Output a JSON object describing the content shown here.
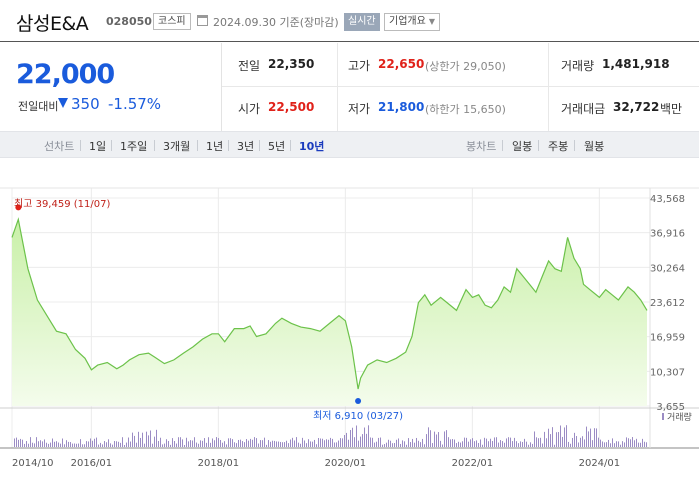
{
  "header": {
    "name": "삼성E&A",
    "code": "028050",
    "market": "코스피",
    "date": "2024.09.30  기준(장마감)",
    "realtime_label": "실시간",
    "overview_label": "기업개요"
  },
  "price": {
    "current": "22,000",
    "diff_label": "전일대비",
    "diff_value": "350",
    "diff_percent": "-1.57%"
  },
  "summary": {
    "prev_close": {
      "label": "전일",
      "value": "22,350"
    },
    "high": {
      "label": "고가",
      "value": "22,650",
      "sub": "(상한가 29,050)"
    },
    "volume": {
      "label": "거래량",
      "value": "1,481,918"
    },
    "open": {
      "label": "시가",
      "value": "22,500"
    },
    "low": {
      "label": "저가",
      "value": "21,800",
      "sub": "(하한가 15,650)"
    },
    "trade_value": {
      "label": "거래대금",
      "value": "32,722",
      "unit": "백만"
    }
  },
  "line_chart_tabs": {
    "label": "선차트",
    "items": [
      "1일",
      "1주일",
      "3개월",
      "1년",
      "3년",
      "5년",
      "10년"
    ],
    "active_index": 6
  },
  "candle_chart_tabs": {
    "label": "봉차트",
    "items": [
      "일봉",
      "주봉",
      "월봉"
    ]
  },
  "chart_data": {
    "type": "area",
    "title": "",
    "x_ticks": [
      "2014/10",
      "2016/01",
      "2018/01",
      "2020/01",
      "2022/01",
      "2024/01"
    ],
    "y_ticks": [
      43568,
      36916,
      30264,
      23612,
      16959,
      10307,
      3655
    ],
    "ylim": [
      3655,
      43568
    ],
    "grid": true,
    "high_label": "최고 39,459 (11/07)",
    "low_label": "최저 6,910 (03/27)",
    "volume_label": "거래량",
    "colors": {
      "line": "#6cc24a",
      "fill_top": "#c9f0a8",
      "fill_bottom": "#f4fcec",
      "high_dot": "#e0221a",
      "low_dot": "#1a5bdc",
      "volume": "#9b8cc4"
    },
    "x": [
      2014.75,
      2014.85,
      2015.0,
      2015.15,
      2015.3,
      2015.45,
      2015.6,
      2015.75,
      2015.9,
      2016.0,
      2016.1,
      2016.25,
      2016.4,
      2016.5,
      2016.6,
      2016.75,
      2016.9,
      2017.0,
      2017.15,
      2017.3,
      2017.45,
      2017.6,
      2017.75,
      2017.9,
      2018.0,
      2018.1,
      2018.25,
      2018.4,
      2018.5,
      2018.6,
      2018.75,
      2018.9,
      2019.0,
      2019.15,
      2019.3,
      2019.45,
      2019.6,
      2019.75,
      2019.9,
      2020.0,
      2020.1,
      2020.2,
      2020.24,
      2020.35,
      2020.5,
      2020.65,
      2020.8,
      2020.95,
      2021.05,
      2021.15,
      2021.25,
      2021.35,
      2021.5,
      2021.6,
      2021.75,
      2021.9,
      2022.0,
      2022.1,
      2022.2,
      2022.3,
      2022.4,
      2022.5,
      2022.6,
      2022.7,
      2022.8,
      2022.9,
      2023.0,
      2023.1,
      2023.2,
      2023.3,
      2023.4,
      2023.5,
      2023.6,
      2023.7,
      2023.75,
      2023.85,
      2024.0,
      2024.1,
      2024.2,
      2024.3,
      2024.45,
      2024.55,
      2024.65,
      2024.75
    ],
    "y": [
      36000,
      39459,
      30000,
      24000,
      21000,
      18000,
      17500,
      14500,
      12800,
      10600,
      11500,
      12000,
      10800,
      11500,
      12500,
      13500,
      13800,
      13000,
      11800,
      12500,
      13800,
      15000,
      16500,
      17500,
      17500,
      16000,
      18500,
      18500,
      19000,
      17000,
      17500,
      19500,
      20500,
      19500,
      18800,
      18500,
      18000,
      19500,
      21000,
      20000,
      15000,
      6910,
      9000,
      11500,
      12500,
      12000,
      12800,
      14000,
      17000,
      23500,
      25000,
      23000,
      24500,
      23500,
      22000,
      26000,
      24500,
      25000,
      23000,
      22500,
      24000,
      26500,
      25500,
      30000,
      28500,
      27000,
      25500,
      28500,
      31500,
      30000,
      29500,
      36000,
      32000,
      30000,
      27000,
      26000,
      24500,
      26000,
      25000,
      24000,
      26500,
      25500,
      24000,
      22000
    ]
  }
}
